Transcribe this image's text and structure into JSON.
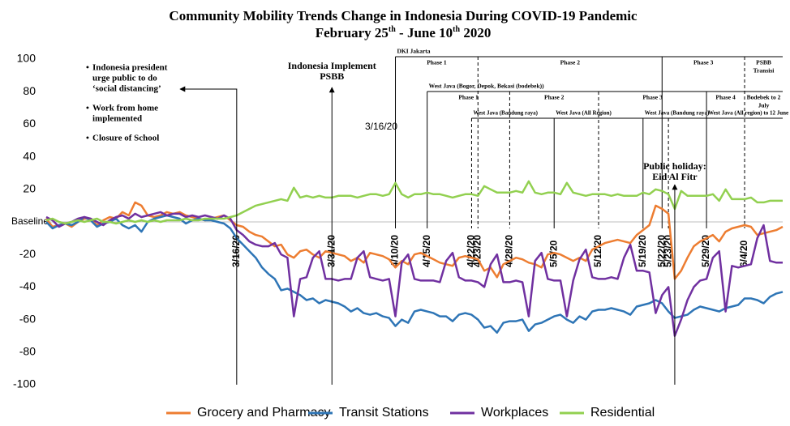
{
  "chart_data": {
    "type": "line",
    "title": "Community Mobility Trends Change in Indonesia During COVID-19 Pandemic",
    "subtitle": [
      "February 25",
      "th",
      " - June 10",
      "th",
      " 2020"
    ],
    "x": [
      "2020-02-15",
      "2020-02-16",
      "2020-02-17",
      "2020-02-18",
      "2020-02-19",
      "2020-02-20",
      "2020-02-21",
      "2020-02-22",
      "2020-02-23",
      "2020-02-24",
      "2020-02-25",
      "2020-02-26",
      "2020-02-27",
      "2020-02-28",
      "2020-02-29",
      "2020-03-01",
      "2020-03-02",
      "2020-03-03",
      "2020-03-04",
      "2020-03-05",
      "2020-03-06",
      "2020-03-07",
      "2020-03-08",
      "2020-03-09",
      "2020-03-10",
      "2020-03-11",
      "2020-03-12",
      "2020-03-13",
      "2020-03-14",
      "2020-03-15",
      "2020-03-16",
      "2020-03-17",
      "2020-03-18",
      "2020-03-19",
      "2020-03-20",
      "2020-03-21",
      "2020-03-22",
      "2020-03-23",
      "2020-03-24",
      "2020-03-25",
      "2020-03-26",
      "2020-03-27",
      "2020-03-28",
      "2020-03-29",
      "2020-03-30",
      "2020-03-31",
      "2020-04-01",
      "2020-04-02",
      "2020-04-03",
      "2020-04-04",
      "2020-04-05",
      "2020-04-06",
      "2020-04-07",
      "2020-04-08",
      "2020-04-09",
      "2020-04-10",
      "2020-04-11",
      "2020-04-12",
      "2020-04-13",
      "2020-04-14",
      "2020-04-15",
      "2020-04-16",
      "2020-04-17",
      "2020-04-18",
      "2020-04-19",
      "2020-04-20",
      "2020-04-21",
      "2020-04-22",
      "2020-04-23",
      "2020-04-24",
      "2020-04-25",
      "2020-04-26",
      "2020-04-27",
      "2020-04-28",
      "2020-04-29",
      "2020-04-30",
      "2020-05-01",
      "2020-05-02",
      "2020-05-03",
      "2020-05-04",
      "2020-05-05",
      "2020-05-06",
      "2020-05-07",
      "2020-05-08",
      "2020-05-09",
      "2020-05-10",
      "2020-05-11",
      "2020-05-12",
      "2020-05-13",
      "2020-05-14",
      "2020-05-15",
      "2020-05-16",
      "2020-05-17",
      "2020-05-18",
      "2020-05-19",
      "2020-05-20",
      "2020-05-21",
      "2020-05-22",
      "2020-05-23",
      "2020-05-24",
      "2020-05-25",
      "2020-05-26",
      "2020-05-27",
      "2020-05-28",
      "2020-05-29",
      "2020-05-30",
      "2020-05-31",
      "2020-06-01",
      "2020-06-02",
      "2020-06-03",
      "2020-06-04",
      "2020-06-05",
      "2020-06-06",
      "2020-06-07",
      "2020-06-08",
      "2020-06-09",
      "2020-06-10"
    ],
    "xlim": [
      "2020-02-15",
      "2020-06-10"
    ],
    "ylim": [
      -100,
      100
    ],
    "yticks": [
      100,
      80,
      60,
      40,
      20,
      {
        "value": 0,
        "label": "Baseline"
      },
      -20,
      -40,
      -60,
      -80,
      -100
    ],
    "series": [
      {
        "name": "Grocery and Pharmacy",
        "color": "#ed7d31",
        "values": [
          2,
          -3,
          -2,
          -1,
          -3,
          0,
          2,
          2,
          -2,
          1,
          3,
          2,
          6,
          4,
          12,
          10,
          4,
          3,
          4,
          6,
          5,
          6,
          4,
          3,
          2,
          1,
          2,
          3,
          4,
          1,
          -2,
          -3,
          -6,
          -8,
          -9,
          -12,
          -15,
          -14,
          -20,
          -22,
          -18,
          -17,
          -20,
          -22,
          -18,
          -19,
          -20,
          -21,
          -24,
          -22,
          -25,
          -19,
          -20,
          -21,
          -23,
          -28,
          -24,
          -26,
          -20,
          -19,
          -21,
          -23,
          -25,
          -26,
          -27,
          -22,
          -21,
          -22,
          -23,
          -30,
          -28,
          -34,
          -26,
          -24,
          -22,
          -23,
          -25,
          -26,
          -28,
          -20,
          -19,
          -20,
          -22,
          -24,
          -22,
          -24,
          -17,
          -15,
          -13,
          -12,
          -11,
          -12,
          -13,
          -8,
          -5,
          -2,
          10,
          8,
          5,
          -35,
          -30,
          -22,
          -15,
          -12,
          -10,
          -8,
          -12,
          -6,
          -4,
          -3,
          -2,
          -3,
          -8,
          -7,
          -6,
          -5,
          -3
        ]
      },
      {
        "name": "Transit Stations",
        "color": "#2e75b6",
        "values": [
          0,
          -4,
          -2,
          -1,
          -2,
          0,
          3,
          1,
          -3,
          -1,
          0,
          2,
          -2,
          -4,
          -2,
          -6,
          0,
          2,
          3,
          4,
          3,
          2,
          -1,
          1,
          2,
          1,
          1,
          0,
          -1,
          -4,
          -10,
          -14,
          -18,
          -22,
          -28,
          -32,
          -35,
          -42,
          -41,
          -43,
          -45,
          -48,
          -47,
          -50,
          -48,
          -49,
          -50,
          -52,
          -55,
          -53,
          -56,
          -57,
          -56,
          -58,
          -59,
          -64,
          -60,
          -62,
          -55,
          -54,
          -55,
          -56,
          -58,
          -58,
          -61,
          -57,
          -56,
          -57,
          -60,
          -65,
          -64,
          -68,
          -62,
          -61,
          -61,
          -60,
          -67,
          -63,
          -62,
          -60,
          -58,
          -57,
          -60,
          -62,
          -58,
          -60,
          -55,
          -54,
          -54,
          -53,
          -54,
          -55,
          -57,
          -52,
          -51,
          -50,
          -48,
          -50,
          -55,
          -59,
          -58,
          -57,
          -54,
          -52,
          -53,
          -54,
          -55,
          -53,
          -52,
          -51,
          -47,
          -47,
          -48,
          -50,
          -46,
          -44,
          -43
        ]
      },
      {
        "name": "Workplaces",
        "color": "#7030a0",
        "values": [
          3,
          1,
          -3,
          -1,
          0,
          2,
          3,
          2,
          0,
          -2,
          1,
          3,
          4,
          2,
          5,
          3,
          4,
          5,
          6,
          4,
          5,
          5,
          3,
          4,
          3,
          4,
          3,
          2,
          4,
          2,
          -5,
          -8,
          -12,
          -14,
          -15,
          -15,
          -13,
          -20,
          -22,
          -58,
          -35,
          -34,
          -22,
          -18,
          -35,
          -35,
          -36,
          -35,
          -35,
          -22,
          -18,
          -34,
          -35,
          -36,
          -35,
          -58,
          -25,
          -20,
          -35,
          -36,
          -36,
          -36,
          -37,
          -24,
          -19,
          -34,
          -36,
          -36,
          -37,
          -40,
          -26,
          -20,
          -37,
          -37,
          -36,
          -37,
          -58,
          -24,
          -19,
          -35,
          -36,
          -36,
          -58,
          -36,
          -23,
          -17,
          -34,
          -35,
          -35,
          -34,
          -35,
          -22,
          -14,
          -30,
          -30,
          -31,
          -56,
          -45,
          -40,
          -70,
          -60,
          -48,
          -40,
          -36,
          -35,
          -22,
          -18,
          -55,
          -27,
          -28,
          -27,
          -26,
          -10,
          -2,
          -24,
          -25,
          -25
        ]
      },
      {
        "name": "Residential",
        "color": "#92d050",
        "values": [
          1,
          2,
          0,
          -1,
          0,
          1,
          0,
          1,
          2,
          0,
          0,
          -1,
          0,
          1,
          0,
          1,
          0,
          1,
          0,
          1,
          1,
          1,
          2,
          1,
          1,
          2,
          2,
          2,
          2,
          3,
          4,
          6,
          8,
          10,
          11,
          12,
          13,
          14,
          13,
          21,
          15,
          16,
          15,
          16,
          15,
          15,
          16,
          16,
          16,
          15,
          16,
          17,
          17,
          16,
          17,
          24,
          17,
          15,
          17,
          17,
          18,
          17,
          17,
          16,
          15,
          16,
          17,
          17,
          16,
          22,
          20,
          18,
          18,
          18,
          19,
          18,
          25,
          18,
          17,
          18,
          18,
          17,
          24,
          18,
          17,
          16,
          17,
          17,
          17,
          16,
          17,
          16,
          16,
          16,
          18,
          17,
          20,
          19,
          17,
          8,
          19,
          16,
          16,
          16,
          16,
          17,
          13,
          20,
          14,
          14,
          14,
          15,
          12,
          12,
          13,
          13,
          13
        ]
      }
    ],
    "legend": "bottom",
    "date_markers": [
      {
        "date": "2020-03-16",
        "label": "3/16/20",
        "style": "solid"
      },
      {
        "date": "2020-03-31",
        "label": "3/31/20",
        "style": "solid"
      },
      {
        "date": "2020-04-10",
        "label": "4/10/20",
        "style": "solid"
      },
      {
        "date": "2020-04-15",
        "label": "4/15/20",
        "style": "solid"
      },
      {
        "date": "2020-04-22",
        "label": "4/22/20",
        "style": "dashed"
      },
      {
        "date": "2020-04-23",
        "label": "4/23/20",
        "style": "dashed"
      },
      {
        "date": "2020-04-28",
        "label": "4/28/20",
        "style": "dashed"
      },
      {
        "date": "2020-05-05",
        "label": "5/5/20",
        "style": "solid"
      },
      {
        "date": "2020-05-12",
        "label": "5/12/20",
        "style": "dashed"
      },
      {
        "date": "2020-05-19",
        "label": "5/19/20",
        "style": "solid"
      },
      {
        "date": "2020-05-22",
        "label": "5/22/20",
        "style": "solid"
      },
      {
        "date": "2020-05-23",
        "label": "5/23/20",
        "style": "dashed"
      },
      {
        "date": "2020-05-29",
        "label": "5/29/20",
        "style": "solid"
      },
      {
        "date": "2020-06-04",
        "label": "6/4/20",
        "style": "dashed"
      }
    ],
    "phase_rows": [
      {
        "region": "DKI Jakarta",
        "label_position": "center",
        "segments": [
          {
            "label": "Phase 1",
            "start": "2020-04-10"
          },
          {
            "label": "Phase 2",
            "start": "2020-04-23"
          },
          {
            "label": "Phase 3",
            "start": "2020-05-22"
          },
          {
            "label": [
              "PSBB",
              "Transisi"
            ],
            "start": "2020-06-04"
          }
        ]
      },
      {
        "region": "West Java (Bogor, Depok, Bekasi (bodebek))",
        "label_position": "center",
        "segments": [
          {
            "label": "Phase 1",
            "start": "2020-04-15"
          },
          {
            "label": "Phase 2",
            "start": "2020-04-28"
          },
          {
            "label": "Phase 3",
            "start": "2020-05-12"
          },
          {
            "label": "Phase 4",
            "start": "2020-05-29"
          },
          {
            "label": [
              "Bodebek to 2",
              "July"
            ],
            "start": "2020-06-04"
          }
        ]
      },
      {
        "label_position": "start",
        "segments": [
          {
            "label": "West Java (Bandung raya)",
            "start": "2020-04-22"
          },
          {
            "label": "West Java (All Region)",
            "start": "2020-05-05"
          },
          {
            "label": "West Java (Bandung raya)",
            "start": "2020-05-19"
          },
          {
            "label": "West Java (All region) to 12 June",
            "start": "2020-05-29"
          }
        ]
      }
    ],
    "notes": {
      "date": "2020-03-16",
      "items": [
        [
          "Indonesia president",
          "urge public to do",
          "‘social distancing’"
        ],
        [
          "Work from home",
          "implemented"
        ],
        [
          "Closure of School"
        ]
      ]
    },
    "annotations": [
      {
        "date": "2020-03-31",
        "text": [
          "Indonesia Implement",
          "PSBB"
        ]
      },
      {
        "date": "2020-05-24",
        "text": [
          "Public holiday:",
          "Eid Al Fitr"
        ]
      }
    ],
    "date_note": "3/16/20"
  }
}
